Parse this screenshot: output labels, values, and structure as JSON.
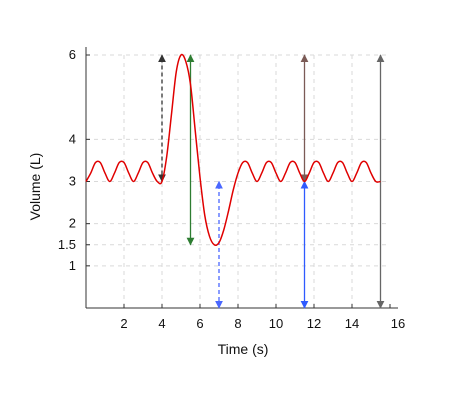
{
  "chart_data": {
    "type": "line",
    "xlabel": "Time (s)",
    "ylabel": "Volume (L)",
    "xlim": [
      0,
      16
    ],
    "ylim": [
      0,
      6
    ],
    "x_ticks": [
      2,
      4,
      6,
      8,
      10,
      12,
      14,
      16
    ],
    "y_ticks": [
      1,
      1.5,
      2,
      3,
      4,
      6
    ],
    "grid": true,
    "series": [
      {
        "color": "#e00000",
        "x": [
          0,
          0.25,
          0.5,
          0.75,
          1,
          1.25,
          1.5,
          1.75,
          2,
          2.25,
          2.5,
          2.75,
          3,
          3.25,
          3.5,
          3.75,
          4,
          4.25,
          4.5,
          4.75,
          5,
          5.25,
          5.5,
          5.75,
          6,
          6.25,
          6.5,
          6.75,
          7,
          7.25,
          7.5,
          7.75,
          8,
          8.25,
          8.5,
          8.75,
          9,
          9.25,
          9.5,
          9.75,
          10,
          10.25,
          10.5,
          10.75,
          11,
          11.25,
          11.5,
          11.75,
          12,
          12.25,
          12.5,
          12.75,
          13,
          13.25,
          13.5,
          13.75,
          14,
          14.25,
          14.5,
          14.75,
          15,
          15.25,
          15.5
        ],
        "y": [
          3,
          3.2,
          3.45,
          3.45,
          3.2,
          3,
          3.2,
          3.45,
          3.45,
          3.2,
          3,
          3.2,
          3.45,
          3.45,
          3.2,
          3,
          3,
          3.6,
          4.6,
          5.6,
          6,
          5.85,
          5.3,
          4.2,
          3.1,
          2.2,
          1.7,
          1.5,
          1.55,
          1.85,
          2.3,
          2.8,
          3.2,
          3.45,
          3.45,
          3.2,
          3,
          3.2,
          3.45,
          3.45,
          3.2,
          3,
          3.2,
          3.45,
          3.45,
          3.2,
          3,
          3.2,
          3.45,
          3.45,
          3.2,
          3,
          3.2,
          3.45,
          3.45,
          3.2,
          3,
          3.2,
          3.45,
          3.45,
          3.2,
          3,
          3
        ]
      }
    ],
    "annotations": [
      {
        "kind": "double-arrow",
        "x": 4,
        "y_from": 3,
        "y_to": 6,
        "color": "#333333",
        "style": "dashed"
      },
      {
        "kind": "double-arrow",
        "x": 5.5,
        "y_from": 1.5,
        "y_to": 6,
        "color": "#2e7d32",
        "style": "solid"
      },
      {
        "kind": "double-arrow",
        "x": 7,
        "y_from": 0,
        "y_to": 3,
        "color": "#4a67ff",
        "style": "dashed"
      },
      {
        "kind": "double-arrow",
        "x": 11.5,
        "y_from": 3,
        "y_to": 6,
        "color": "#7b5b56",
        "style": "solid"
      },
      {
        "kind": "double-arrow",
        "x": 11.5,
        "y_from": 0,
        "y_to": 3,
        "color": "#2f5bff",
        "style": "solid"
      },
      {
        "kind": "double-arrow",
        "x": 15.5,
        "y_from": 0,
        "y_to": 6,
        "color": "#666666",
        "style": "solid"
      }
    ]
  }
}
